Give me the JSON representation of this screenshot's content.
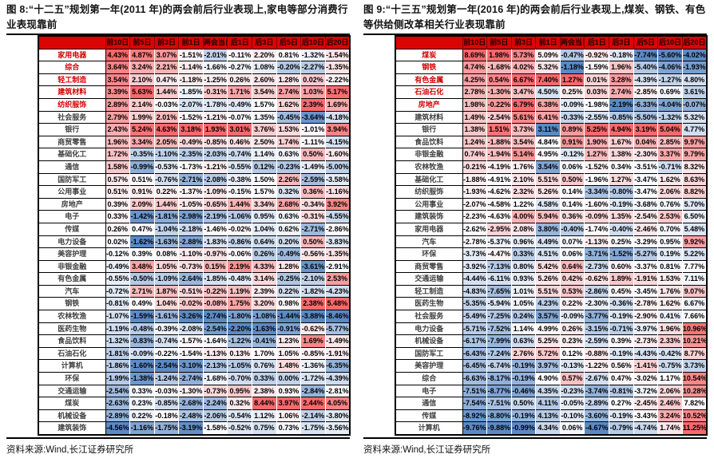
{
  "colors": {
    "header_bg": "#DB0404",
    "header_text": "#1a0000",
    "scale_max": "#F8696B",
    "scale_mid": "#FCFCFF",
    "scale_min": "#5A8AC6",
    "label_highlight": "#D40000",
    "label_text": "#3f3f3f"
  },
  "chart_data": [
    {
      "type": "heatmap",
      "title": "图 8:“十二五”规划第一年(2011 年)的两会前后行业表现上,家电等部分消费行业表现靠前",
      "source": "资料来源:Wind,长江证券研究所",
      "legend_position": "none",
      "value_format": "percent_2dp",
      "color_scale": "per-column min→blue, median→white, max→red",
      "columns": [
        "前10日",
        "前5日",
        "前3日",
        "前1日",
        "两会当日",
        "后1日",
        "后3日",
        "后5日",
        "后10日",
        "后20日"
      ],
      "highlight_top_rows": 5,
      "rows": [
        {
          "label": "家用电器",
          "values": [
            4.43,
            4.87,
            3.07,
            -1.51,
            -2.01,
            -0.11,
            2.2,
            0.81,
            -1.32,
            -1.54
          ]
        },
        {
          "label": "综合",
          "values": [
            3.64,
            3.24,
            2.21,
            -1.14,
            -1.66,
            -0.27,
            1.08,
            -0.2,
            -2.27,
            -1.35
          ]
        },
        {
          "label": "轻工制造",
          "values": [
            3.54,
            2.1,
            0.47,
            -1.18,
            -1.25,
            0.26,
            2.6,
            1.28,
            0.02,
            -2.22
          ]
        },
        {
          "label": "建筑材料",
          "values": [
            3.39,
            5.63,
            1.44,
            -1.85,
            -0.31,
            1.71,
            3.54,
            2.74,
            1.03,
            5.17
          ]
        },
        {
          "label": "纺织服饰",
          "values": [
            2.89,
            2.14,
            -0.03,
            -2.07,
            -1.78,
            -0.49,
            1.57,
            1.62,
            2.39,
            1.69
          ]
        },
        {
          "label": "社会服务",
          "values": [
            2.79,
            1.99,
            2.01,
            -1.52,
            -1.21,
            -0.07,
            1.35,
            -0.45,
            -3.64,
            -4.18
          ]
        },
        {
          "label": "银行",
          "values": [
            2.43,
            5.24,
            4.63,
            3.18,
            1.93,
            3.01,
            3.76,
            1.53,
            -1.01,
            3.94
          ]
        },
        {
          "label": "商贸零售",
          "values": [
            1.96,
            3.34,
            2.05,
            -0.49,
            -0.85,
            0.46,
            2.5,
            1.74,
            -1.11,
            -4.15
          ]
        },
        {
          "label": "基础化工",
          "values": [
            1.72,
            -0.35,
            -1.1,
            -2.35,
            -2.03,
            -0.74,
            1.14,
            0.63,
            0.5,
            -1.6
          ]
        },
        {
          "label": "通信",
          "values": [
            1.58,
            -0.99,
            -0.53,
            -1.73,
            -1.21,
            -0.55,
            0.12,
            -0.23,
            -1.49,
            -5.0
          ]
        },
        {
          "label": "国防军工",
          "values": [
            0.57,
            0.51,
            -0.76,
            -2.71,
            -2.08,
            -0.38,
            1.5,
            2.26,
            -2.59,
            -3.58
          ]
        },
        {
          "label": "公用事业",
          "values": [
            0.51,
            0.91,
            0.22,
            -1.37,
            -1.09,
            -0.15,
            1.57,
            0.32,
            0.36,
            -1.16
          ]
        },
        {
          "label": "房地产",
          "values": [
            0.39,
            2.09,
            1.44,
            -1.05,
            -0.65,
            1.44,
            3.34,
            2.68,
            -0.34,
            3.92
          ]
        },
        {
          "label": "电子",
          "values": [
            0.33,
            -1.42,
            -1.81,
            -2.98,
            -2.19,
            -1.06,
            0.95,
            0.63,
            -0.31,
            -4.55
          ]
        },
        {
          "label": "传媒",
          "values": [
            0.26,
            0.47,
            -1.04,
            -2.18,
            -1.46,
            -0.02,
            1.04,
            0.62,
            -2.71,
            -2.86
          ]
        },
        {
          "label": "电力设备",
          "values": [
            0.02,
            -1.62,
            -1.63,
            -2.88,
            -1.83,
            -0.86,
            0.64,
            0.2,
            0.5,
            -3.83
          ]
        },
        {
          "label": "美容护理",
          "values": [
            -0.12,
            0.39,
            0.08,
            -1.1,
            -0.97,
            -0.06,
            0.26,
            -0.49,
            -0.56,
            -1.35
          ]
        },
        {
          "label": "非银金融",
          "values": [
            -0.49,
            3.48,
            1.05,
            -0.73,
            0.15,
            2.19,
            4.33,
            1.28,
            -3.61,
            -2.91
          ]
        },
        {
          "label": "有色金属",
          "values": [
            -0.55,
            -0.5,
            -1.09,
            -2.64,
            -1.85,
            -0.48,
            3.14,
            -0.25,
            -2.1,
            2.53
          ]
        },
        {
          "label": "汽车",
          "values": [
            -0.72,
            2.71,
            1.87,
            -0.51,
            -0.22,
            1.19,
            2.39,
            0.22,
            -1.82,
            -4.23
          ]
        },
        {
          "label": "钢铁",
          "values": [
            -0.81,
            0.49,
            1.04,
            -0.02,
            -0.08,
            1.75,
            3.2,
            0.98,
            2.38,
            5.48
          ]
        },
        {
          "label": "农林牧渔",
          "values": [
            -1.07,
            -1.59,
            -1.61,
            -3.26,
            -2.74,
            -1.8,
            -1.08,
            -1.44,
            -3.88,
            -8.46
          ]
        },
        {
          "label": "医药生物",
          "values": [
            -1.19,
            -0.48,
            -0.39,
            -2.08,
            -2.54,
            -2.2,
            -1.63,
            -0.91,
            -0.62,
            -5.77
          ]
        },
        {
          "label": "食品饮料",
          "values": [
            -1.32,
            -0.83,
            -0.74,
            -1.57,
            -1.64,
            -1.22,
            -0.41,
            1.23,
            1.69,
            -1.49
          ]
        },
        {
          "label": "石油石化",
          "values": [
            -1.81,
            -0.09,
            -0.22,
            -1.54,
            -1.13,
            0.13,
            1.7,
            1.05,
            -0.85,
            -1.91
          ]
        },
        {
          "label": "计算机",
          "values": [
            -1.86,
            -1.6,
            -2.54,
            -3.1,
            -2.13,
            -1.05,
            0.76,
            1.48,
            -1.36,
            -6.35
          ]
        },
        {
          "label": "环保",
          "values": [
            -1.99,
            -1.38,
            -1.24,
            -2.74,
            -1.68,
            -0.7,
            0.33,
            0.0,
            -1.72,
            -4.39
          ]
        },
        {
          "label": "交通运输",
          "values": [
            -2.54,
            0.33,
            -0.03,
            -1.3,
            -0.73,
            0.95,
            2.38,
            0.93,
            -2.84,
            -2.81
          ]
        },
        {
          "label": "煤炭",
          "values": [
            -2.63,
            0.23,
            -0.85,
            -2.68,
            -2.24,
            0.32,
            8.44,
            3.97,
            2.44,
            4.05
          ]
        },
        {
          "label": "机械设备",
          "values": [
            -2.89,
            0.22,
            -0.18,
            -2.48,
            -2.06,
            -0.54,
            1.12,
            1.06,
            -2.14,
            -3.8
          ]
        },
        {
          "label": "建筑装饰",
          "values": [
            -4.56,
            -1.16,
            -1.75,
            -3.19,
            -1.58,
            -0.52,
            0.75,
            0.73,
            -1.75,
            -3.56
          ]
        }
      ]
    },
    {
      "type": "heatmap",
      "title": "图 9:“十三五”规划第一年(2016 年)的两会前后行业表现上,煤炭、钢铁、有色等供给侧改革相关行业表现靠前",
      "source": "资料来源:Wind,长江证券研究所",
      "legend_position": "none",
      "value_format": "percent_2dp",
      "color_scale": "per-column min→blue, median→white, max→red",
      "columns": [
        "前10日",
        "前5日",
        "前3日",
        "前1日",
        "两会当日",
        "后1日",
        "后3日",
        "后5日",
        "后10日",
        "后20日"
      ],
      "highlight_top_rows": 5,
      "rows": [
        {
          "label": "煤炭",
          "values": [
            8.69,
            1.98,
            5.73,
            5.09,
            -0.47,
            -0.92,
            -0.18,
            -7.74,
            -5.6,
            -4.02
          ]
        },
        {
          "label": "钢铁",
          "values": [
            4.74,
            -1.68,
            4.02,
            5.32,
            -1.18,
            -1.59,
            1.96,
            -5.4,
            -4.06,
            -1.93
          ]
        },
        {
          "label": "有色金属",
          "values": [
            4.25,
            0.54,
            6.67,
            7.4,
            1.27,
            0.01,
            3.28,
            -4.39,
            -1.27,
            4.8
          ]
        },
        {
          "label": "石油石化",
          "values": [
            2.78,
            -1.3,
            3.47,
            4.5,
            0.25,
            0.03,
            2.74,
            -2.85,
            0.69,
            3.61
          ]
        },
        {
          "label": "房地产",
          "values": [
            1.98,
            -0.22,
            6.79,
            6.38,
            -0.09,
            -1.98,
            -2.19,
            -6.33,
            -4.04,
            -0.07
          ]
        },
        {
          "label": "建筑材料",
          "values": [
            1.49,
            -2.54,
            5.61,
            6.41,
            -0.33,
            -2.55,
            -0.85,
            -5.5,
            -1.32,
            5.32
          ]
        },
        {
          "label": "银行",
          "values": [
            1.38,
            1.51,
            3.73,
            3.11,
            0.89,
            5.25,
            4.94,
            3.19,
            5.04,
            4.77
          ]
        },
        {
          "label": "食品饮料",
          "values": [
            1.24,
            -1.88,
            3.54,
            4.84,
            0.91,
            1.9,
            1.67,
            0.04,
            2.85,
            9.97
          ]
        },
        {
          "label": "非银金融",
          "values": [
            0.74,
            -1.94,
            5.14,
            4.95,
            -0.12,
            1.27,
            1.38,
            -2.3,
            3.37,
            9.79
          ]
        },
        {
          "label": "农林牧渔",
          "values": [
            -0.21,
            -4.19,
            1.76,
            3.54,
            0.06,
            -1.52,
            0.34,
            -3.51,
            -0.71,
            8.32
          ]
        },
        {
          "label": "基础化工",
          "values": [
            -1.88,
            -4.91,
            2.1,
            5.51,
            0.5,
            -1.96,
            1.27,
            -3.47,
            1.62,
            8.63
          ]
        },
        {
          "label": "纺织服饰",
          "values": [
            -1.93,
            -4.62,
            2.32,
            5.26,
            0.14,
            -3.34,
            -0.8,
            -3.47,
            2.06,
            8.82
          ]
        },
        {
          "label": "公用事业",
          "values": [
            -2.07,
            -4.58,
            1.22,
            4.58,
            0.14,
            -1.6,
            -0.19,
            -3.68,
            0.76,
            5.7
          ]
        },
        {
          "label": "建筑装饰",
          "values": [
            -2.23,
            -4.63,
            4.0,
            5.94,
            0.36,
            -0.09,
            1.35,
            -2.54,
            2.53,
            6.5
          ]
        },
        {
          "label": "家用电器",
          "values": [
            -2.62,
            -2.95,
            2.08,
            3.8,
            -0.4,
            -1.74,
            -0.4,
            -2.46,
            0.7,
            5.48
          ]
        },
        {
          "label": "汽车",
          "values": [
            -2.78,
            -5.37,
            0.96,
            4.49,
            0.07,
            -1.13,
            0.25,
            -3.29,
            0.95,
            9.92
          ]
        },
        {
          "label": "环保",
          "values": [
            -3.73,
            -4.47,
            0.33,
            4.51,
            0.06,
            -3.71,
            -1.52,
            -5.27,
            0.19,
            5.22
          ]
        },
        {
          "label": "商贸零售",
          "values": [
            -3.92,
            -7.13,
            0.8,
            5.42,
            0.64,
            -2.73,
            0.6,
            -3.37,
            0.81,
            7.77
          ]
        },
        {
          "label": "交通运输",
          "values": [
            -4.44,
            -6.11,
            0.93,
            5.26,
            0.42,
            -0.62,
            1.89,
            -1.91,
            1.53,
            7.11
          ]
        },
        {
          "label": "轻工制造",
          "values": [
            -4.83,
            -7.65,
            1.01,
            5.51,
            0.53,
            -2.86,
            0.45,
            -3.45,
            1.76,
            9.07
          ]
        },
        {
          "label": "医药生物",
          "values": [
            -5.35,
            -5.94,
            1.05,
            4.23,
            0.22,
            -2.3,
            -0.36,
            -2.78,
            1.62,
            6.67
          ]
        },
        {
          "label": "社会服务",
          "values": [
            -5.49,
            -7.25,
            0.24,
            3.57,
            -0.09,
            -3.77,
            -0.19,
            -2.9,
            0.41,
            7.66
          ]
        },
        {
          "label": "电力设备",
          "values": [
            -5.71,
            -7.52,
            1.14,
            4.99,
            0.26,
            -3.15,
            -0.71,
            -3.97,
            1.96,
            10.96
          ]
        },
        {
          "label": "机械设备",
          "values": [
            -6.17,
            -7.99,
            0.63,
            5.25,
            0.23,
            -2.59,
            0.39,
            -2.73,
            2.33,
            10.21
          ]
        },
        {
          "label": "国防军工",
          "values": [
            -6.43,
            -7.24,
            2.76,
            5.72,
            0.12,
            -0.88,
            -0.19,
            -4.43,
            -0.42,
            8.77
          ]
        },
        {
          "label": "美容护理",
          "values": [
            -6.45,
            -6.74,
            -0.19,
            3.97,
            -0.13,
            -1.22,
            0.56,
            -1.41,
            -0.75,
            3.73
          ]
        },
        {
          "label": "综合",
          "values": [
            -6.63,
            -8.17,
            -0.19,
            4.9,
            0.57,
            -2.67,
            0.47,
            -3.02,
            1.17,
            10.54
          ]
        },
        {
          "label": "电子",
          "values": [
            -7.51,
            -8.77,
            -0.46,
            4.35,
            -0.23,
            -3.74,
            -0.81,
            -3.72,
            2.06,
            10.28
          ]
        },
        {
          "label": "通信",
          "values": [
            -7.54,
            -7.51,
            0.5,
            4.11,
            -0.05,
            -2.89,
            0.27,
            -2.45,
            2.46,
            7.82
          ]
        },
        {
          "label": "传媒",
          "values": [
            -8.92,
            -8.8,
            -0.19,
            4.13,
            -0.1,
            -3.6,
            -0.19,
            -3.43,
            3.24,
            10.52
          ]
        },
        {
          "label": "计算机",
          "values": [
            -9.76,
            -9.88,
            -0.99,
            4.34,
            0.06,
            -4.67,
            -0.79,
            -4.74,
            1.74,
            11.25
          ]
        }
      ]
    }
  ]
}
